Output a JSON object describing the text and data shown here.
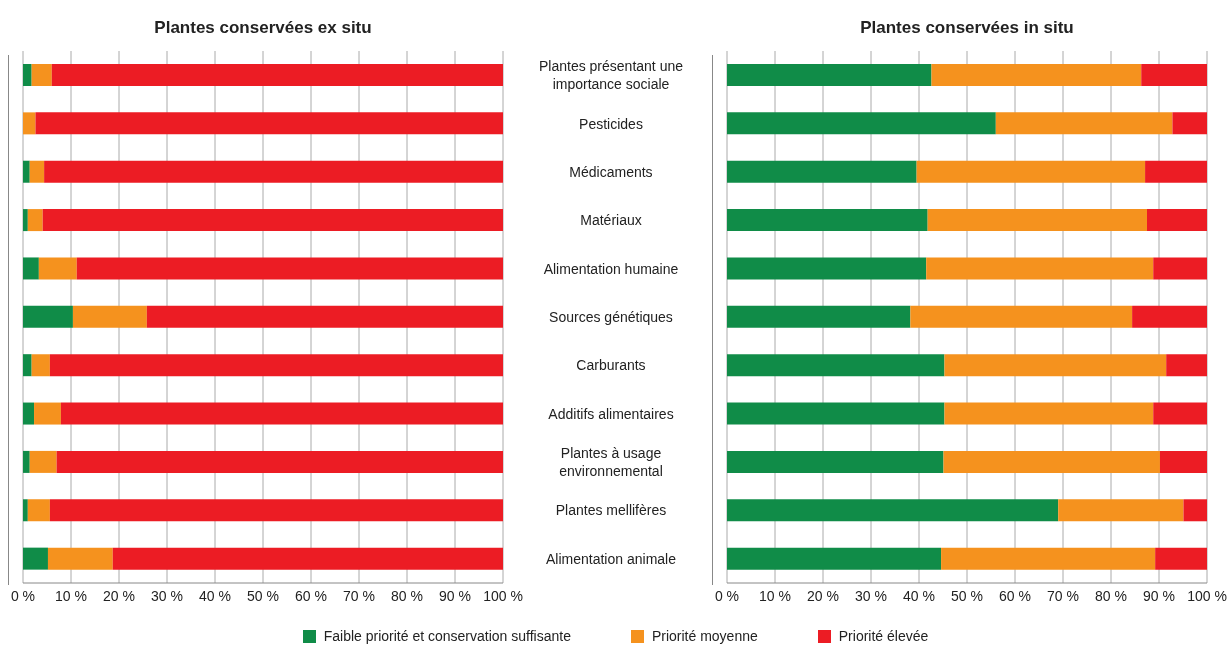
{
  "chart_data": [
    {
      "type": "bar",
      "title": "Plantes conservées ex situ",
      "orientation": "horizontal",
      "stacked": true,
      "legend": "bottom",
      "grid": "x",
      "categories": [
        "Plantes présentant une importance sociale",
        "Pesticides",
        "Médicaments",
        "Matériaux",
        "Alimentation humaine",
        "Sources génétiques",
        "Carburants",
        "Additifs alimentaires",
        "Plantes à usage environnemental",
        "Plantes mellifères",
        "Alimentation animale"
      ],
      "xlim": [
        0,
        100
      ],
      "xticks": [
        {
          "value": 0,
          "label": "0 %"
        },
        {
          "value": 10,
          "label": "10 %"
        },
        {
          "value": 20,
          "label": "20 %"
        },
        {
          "value": 30,
          "label": "30 %"
        },
        {
          "value": 40,
          "label": "40 %"
        },
        {
          "value": 50,
          "label": "50 %"
        },
        {
          "value": 60,
          "label": "60 %"
        },
        {
          "value": 70,
          "label": "70 %"
        },
        {
          "value": 80,
          "label": "80 %"
        },
        {
          "value": 90,
          "label": "90 %"
        },
        {
          "value": 100,
          "label": "100 %"
        }
      ],
      "series": [
        {
          "name": "Faible priorité et conservation suffisante",
          "color": "#108c48",
          "values": [
            1.8,
            0,
            1.4,
            1.0,
            3.3,
            10.4,
            1.8,
            2.3,
            1.4,
            1.0,
            5.2
          ]
        },
        {
          "name": "Priorité moyenne",
          "color": "#f5921e",
          "values": [
            4.2,
            2.6,
            3.0,
            3.1,
            7.9,
            15.4,
            3.8,
            5.6,
            5.6,
            4.6,
            13.5
          ]
        },
        {
          "name": "Priorité élevée",
          "color": "#ec1c24",
          "values": [
            94.0,
            97.4,
            95.6,
            95.9,
            88.8,
            74.2,
            94.4,
            92.1,
            93.0,
            94.4,
            81.3
          ]
        }
      ]
    },
    {
      "type": "bar",
      "title": "Plantes conservées in situ",
      "orientation": "horizontal",
      "stacked": true,
      "grid": "x",
      "tick_labels": "x",
      "xlim": [
        0,
        100
      ],
      "xticks": [
        {
          "value": 0,
          "label": "0 %"
        },
        {
          "value": 10,
          "label": "10 %"
        },
        {
          "value": 20,
          "label": "20 %"
        },
        {
          "value": 30,
          "label": "30 %"
        },
        {
          "value": 40,
          "label": "40 %"
        },
        {
          "value": 50,
          "label": "50 %"
        },
        {
          "value": 60,
          "label": "60 %"
        },
        {
          "value": 70,
          "label": "70 %"
        },
        {
          "value": 80,
          "label": "80 %"
        },
        {
          "value": 90,
          "label": "90 %"
        },
        {
          "value": 100,
          "label": "100 %"
        }
      ],
      "series": [
        {
          "color": "#108c48",
          "values": [
            42.6,
            56.0,
            39.5,
            41.8,
            41.5,
            38.2,
            45.3,
            45.3,
            45.1,
            69.0,
            44.6
          ]
        },
        {
          "color": "#f5921e",
          "values": [
            43.7,
            36.8,
            47.6,
            45.7,
            47.3,
            46.2,
            46.2,
            43.5,
            45.1,
            26.1,
            44.6
          ]
        },
        {
          "color": "#ec1c24",
          "values": [
            13.7,
            7.2,
            12.9,
            12.5,
            11.2,
            15.6,
            8.5,
            11.2,
            9.8,
            4.9,
            10.8
          ]
        }
      ]
    }
  ]
}
